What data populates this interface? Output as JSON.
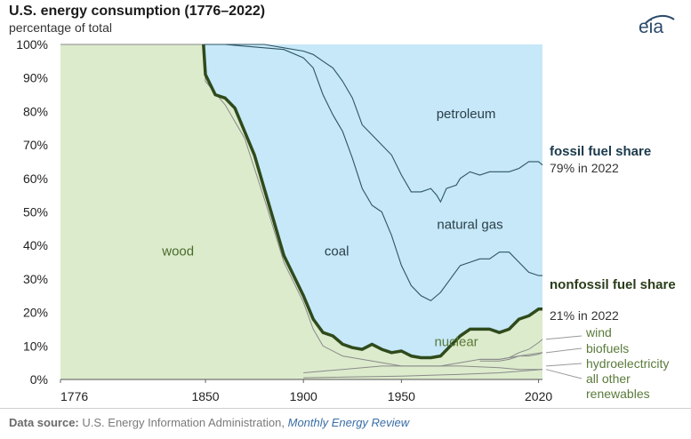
{
  "title": "U.S. energy consumption (1776–2022)",
  "subtitle": "percentage of total",
  "logo_text": "eia",
  "footer": {
    "label": "Data source:",
    "text": "U.S. Energy Information Administration,",
    "publication": "Monthly Energy Review"
  },
  "annotations": {
    "fossil_title": "fossil fuel share",
    "fossil_sub": "79% in 2022",
    "nonfossil_title": "nonfossil fuel share",
    "nonfossil_sub": "21% in 2022",
    "wind": "wind",
    "biofuels": "biofuels",
    "hydro": "hydroelectricity",
    "other1": "all other",
    "other2": "renewables"
  },
  "colors": {
    "fossil_area": "#c6e8f8",
    "nonfossil_area": "#dcebcc",
    "fossil_line": "#2e5565",
    "nonfossil_line": "#2f4a1c",
    "renewables_line": "#8a8a8a"
  },
  "chart_data": {
    "type": "area",
    "title": "U.S. energy consumption (1776–2022)",
    "ylabel": "percentage of total",
    "xlim": [
      1776,
      2022
    ],
    "ylim": [
      0,
      100
    ],
    "x_ticks": [
      "1776",
      "1850",
      "1900",
      "1950",
      "2020"
    ],
    "y_ticks": [
      "0%",
      "10%",
      "20%",
      "30%",
      "40%",
      "50%",
      "60%",
      "70%",
      "80%",
      "90%",
      "100%"
    ],
    "area_labels": [
      "wood",
      "coal",
      "petroleum",
      "natural gas",
      "nuclear"
    ],
    "series": [
      {
        "name": "nonfossil fuel share",
        "points": [
          [
            1776,
            100
          ],
          [
            1849,
            100
          ],
          [
            1850,
            91
          ],
          [
            1855,
            85
          ],
          [
            1860,
            84
          ],
          [
            1865,
            81
          ],
          [
            1870,
            74
          ],
          [
            1875,
            67
          ],
          [
            1880,
            57
          ],
          [
            1885,
            47
          ],
          [
            1890,
            37
          ],
          [
            1895,
            31
          ],
          [
            1900,
            25
          ],
          [
            1905,
            18
          ],
          [
            1910,
            14
          ],
          [
            1915,
            13
          ],
          [
            1920,
            10.5
          ],
          [
            1925,
            9.5
          ],
          [
            1930,
            9
          ],
          [
            1935,
            10.5
          ],
          [
            1940,
            9
          ],
          [
            1945,
            8
          ],
          [
            1950,
            8.5
          ],
          [
            1955,
            7
          ],
          [
            1960,
            6.5
          ],
          [
            1965,
            6.5
          ],
          [
            1970,
            7
          ],
          [
            1975,
            10
          ],
          [
            1980,
            13
          ],
          [
            1985,
            15
          ],
          [
            1990,
            15
          ],
          [
            1995,
            15
          ],
          [
            2000,
            14
          ],
          [
            2005,
            15
          ],
          [
            2010,
            18
          ],
          [
            2015,
            19
          ],
          [
            2020,
            21
          ],
          [
            2022,
            21
          ]
        ]
      },
      {
        "name": "coal",
        "points": [
          [
            1849,
            100
          ],
          [
            1860,
            100
          ],
          [
            1870,
            99.5
          ],
          [
            1880,
            99
          ],
          [
            1890,
            98.5
          ],
          [
            1900,
            96
          ],
          [
            1905,
            93
          ],
          [
            1910,
            85
          ],
          [
            1915,
            79
          ],
          [
            1920,
            74
          ],
          [
            1925,
            66
          ],
          [
            1930,
            57
          ],
          [
            1935,
            52
          ],
          [
            1940,
            50
          ],
          [
            1945,
            43
          ],
          [
            1950,
            34
          ],
          [
            1955,
            28
          ],
          [
            1960,
            25
          ],
          [
            1965,
            23.5
          ],
          [
            1970,
            26
          ],
          [
            1975,
            30
          ],
          [
            1980,
            34
          ],
          [
            1985,
            35
          ],
          [
            1990,
            36
          ],
          [
            1995,
            36
          ],
          [
            2000,
            38
          ],
          [
            2005,
            38
          ],
          [
            2010,
            35
          ],
          [
            2015,
            32
          ],
          [
            2020,
            31
          ],
          [
            2022,
            31
          ]
        ]
      },
      {
        "name": "petroleum",
        "points": [
          [
            1849,
            100
          ],
          [
            1880,
            100
          ],
          [
            1890,
            99
          ],
          [
            1900,
            98
          ],
          [
            1905,
            97
          ],
          [
            1910,
            95
          ],
          [
            1915,
            93
          ],
          [
            1920,
            89
          ],
          [
            1925,
            84
          ],
          [
            1930,
            76
          ],
          [
            1935,
            73
          ],
          [
            1940,
            70
          ],
          [
            1945,
            67
          ],
          [
            1950,
            61
          ],
          [
            1955,
            56
          ],
          [
            1960,
            56
          ],
          [
            1965,
            57
          ],
          [
            1968,
            55
          ],
          [
            1970,
            53
          ],
          [
            1973,
            57
          ],
          [
            1978,
            58
          ],
          [
            1980,
            60
          ],
          [
            1985,
            62
          ],
          [
            1990,
            61
          ],
          [
            1995,
            62
          ],
          [
            2000,
            62
          ],
          [
            2005,
            62
          ],
          [
            2010,
            63
          ],
          [
            2015,
            65
          ],
          [
            2020,
            65
          ],
          [
            2022,
            64
          ]
        ]
      },
      {
        "name": "renewables",
        "points": [
          [
            1776,
            100
          ],
          [
            1849,
            100
          ],
          [
            1850,
            89
          ],
          [
            1860,
            82
          ],
          [
            1870,
            72
          ],
          [
            1880,
            54
          ],
          [
            1890,
            35
          ],
          [
            1900,
            23
          ],
          [
            1905,
            15
          ],
          [
            1910,
            10
          ],
          [
            1920,
            7
          ],
          [
            1930,
            6
          ],
          [
            1940,
            5
          ],
          [
            1950,
            4
          ],
          [
            1960,
            4
          ],
          [
            1970,
            4
          ],
          [
            1980,
            5
          ],
          [
            1990,
            6
          ],
          [
            2000,
            6
          ],
          [
            2010,
            7
          ],
          [
            2022,
            8
          ]
        ]
      },
      {
        "name": "wind",
        "points": [
          [
            1990,
            6
          ],
          [
            2000,
            6
          ],
          [
            2005,
            6.5
          ],
          [
            2010,
            8
          ],
          [
            2015,
            9
          ],
          [
            2020,
            11
          ],
          [
            2022,
            12
          ]
        ]
      },
      {
        "name": "biofuels",
        "points": [
          [
            1990,
            5.5
          ],
          [
            2000,
            5.5
          ],
          [
            2005,
            6
          ],
          [
            2010,
            7
          ],
          [
            2015,
            7
          ],
          [
            2020,
            7.5
          ],
          [
            2022,
            8
          ]
        ]
      },
      {
        "name": "hydroelectricity",
        "points": [
          [
            1900,
            2
          ],
          [
            1920,
            3
          ],
          [
            1940,
            4
          ],
          [
            1960,
            4
          ],
          [
            1980,
            4
          ],
          [
            2000,
            3.5
          ],
          [
            2010,
            3
          ],
          [
            2022,
            3
          ]
        ]
      },
      {
        "name": "all other renewables",
        "points": [
          [
            1900,
            0.5
          ],
          [
            1950,
            1
          ],
          [
            1980,
            1.5
          ],
          [
            2000,
            2
          ],
          [
            2022,
            3
          ]
        ]
      }
    ]
  }
}
